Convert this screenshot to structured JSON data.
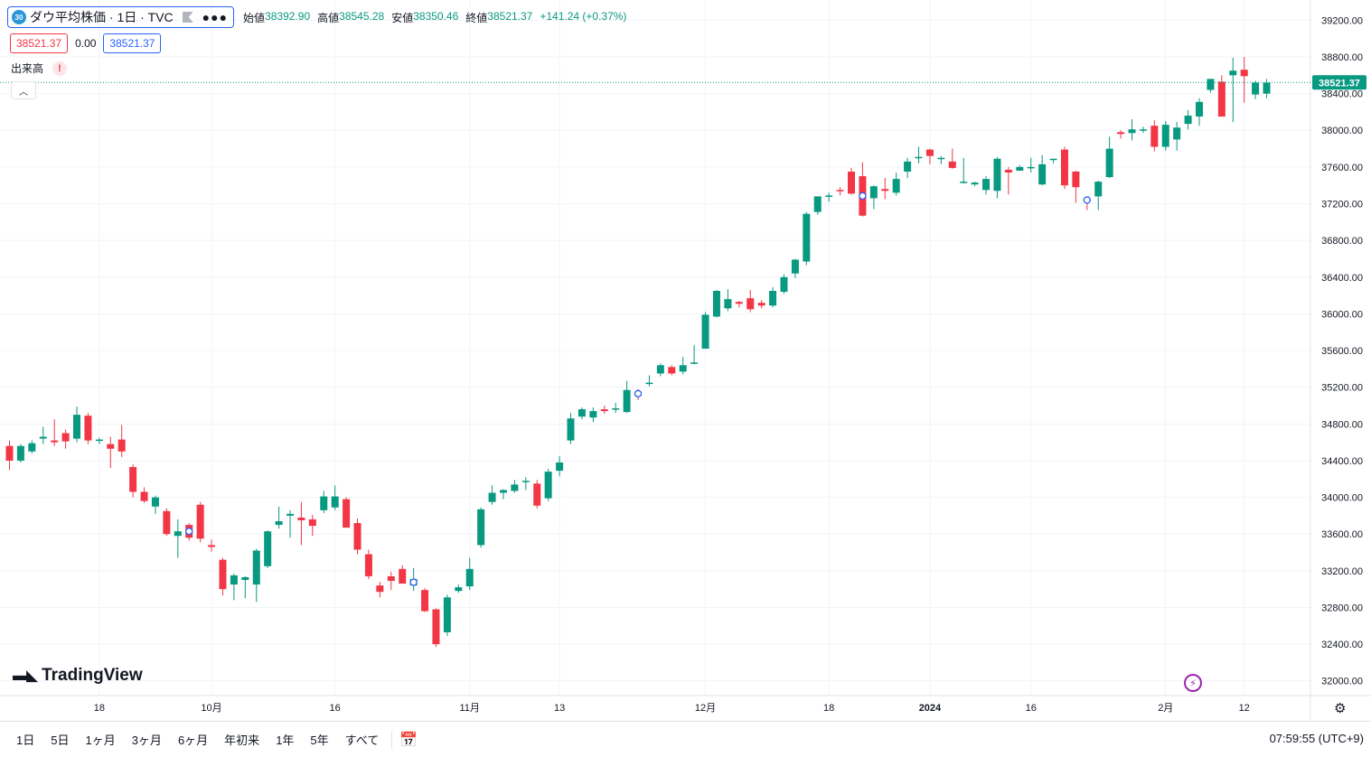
{
  "legend": {
    "badge": "30",
    "title": "ダウ平均株価 · 1日 · TVC",
    "open_label": "始値",
    "open": "38392.90",
    "high_label": "高値",
    "high": "38545.28",
    "low_label": "安値",
    "low": "38350.46",
    "close_label": "終値",
    "close": "38521.37",
    "change": "+141.24 (+0.37%)"
  },
  "quote": {
    "bid": "38521.37",
    "spread": "0.00",
    "ask": "38521.37"
  },
  "volume": {
    "label": "出来高",
    "warning": "!"
  },
  "logo": {
    "text": "TradingView"
  },
  "last_price_label": "38521.37",
  "colors": {
    "up": "#089981",
    "down": "#f23645",
    "accent": "#2962ff"
  },
  "bottom_bar": {
    "ranges": [
      "1日",
      "5日",
      "1ヶ月",
      "3ヶ月",
      "6ヶ月",
      "年初来",
      "1年",
      "5年",
      "すべて"
    ],
    "clock": "07:59:55 (UTC+9)"
  },
  "chart_data": {
    "type": "candlestick",
    "y_ticks": [
      32000,
      32400,
      32800,
      33200,
      33600,
      34000,
      34400,
      34800,
      35200,
      35600,
      36000,
      36400,
      36800,
      37200,
      37600,
      38000,
      38400,
      38800,
      39200
    ],
    "ylim": [
      31840,
      39420
    ],
    "last_price": 38521.37,
    "x_ticks": [
      {
        "label": "18",
        "i": 8
      },
      {
        "label": "10月",
        "i": 18
      },
      {
        "label": "16",
        "i": 29
      },
      {
        "label": "11月",
        "i": 41
      },
      {
        "label": "13",
        "i": 49
      },
      {
        "label": "12月",
        "i": 62
      },
      {
        "label": "18",
        "i": 73
      },
      {
        "label": "2024",
        "i": 82,
        "bold": true
      },
      {
        "label": "16",
        "i": 91
      },
      {
        "label": "2月",
        "i": 103
      },
      {
        "label": "12",
        "i": 110
      }
    ],
    "dividend_markers": [
      16,
      36,
      56,
      76,
      96
    ],
    "candles": [
      [
        34560,
        34620,
        34300,
        34400
      ],
      [
        34400,
        34580,
        34380,
        34560
      ],
      [
        34500,
        34620,
        34480,
        34590
      ],
      [
        34640,
        34770,
        34580,
        34660
      ],
      [
        34620,
        34850,
        34560,
        34600
      ],
      [
        34700,
        34740,
        34530,
        34610
      ],
      [
        34640,
        34990,
        34600,
        34900
      ],
      [
        34890,
        34920,
        34580,
        34620
      ],
      [
        34620,
        34650,
        34580,
        34630
      ],
      [
        34580,
        34660,
        34320,
        34530
      ],
      [
        34630,
        34790,
        34440,
        34500
      ],
      [
        34330,
        34360,
        34000,
        34060
      ],
      [
        34060,
        34110,
        33940,
        33960
      ],
      [
        33900,
        34020,
        33820,
        34000
      ],
      [
        33850,
        33880,
        33580,
        33600
      ],
      [
        33580,
        33760,
        33340,
        33630
      ],
      [
        33700,
        33720,
        33530,
        33560
      ],
      [
        33920,
        33950,
        33510,
        33550
      ],
      [
        33480,
        33540,
        33410,
        33460
      ],
      [
        33320,
        33340,
        32930,
        33000
      ],
      [
        33050,
        33170,
        32880,
        33150
      ],
      [
        33100,
        33140,
        32900,
        33130
      ],
      [
        33050,
        33440,
        32860,
        33420
      ],
      [
        33250,
        33640,
        33230,
        33630
      ],
      [
        33700,
        33900,
        33660,
        33740
      ],
      [
        33800,
        33860,
        33560,
        33820
      ],
      [
        33780,
        33950,
        33480,
        33750
      ],
      [
        33760,
        33810,
        33580,
        33690
      ],
      [
        33860,
        34070,
        33830,
        34010
      ],
      [
        33890,
        34130,
        33860,
        34010
      ],
      [
        33980,
        34000,
        33670,
        33670
      ],
      [
        33720,
        33770,
        33380,
        33430
      ],
      [
        33380,
        33430,
        33110,
        33140
      ],
      [
        33040,
        33080,
        32910,
        32970
      ],
      [
        33140,
        33190,
        32990,
        33090
      ],
      [
        33220,
        33260,
        33070,
        33060
      ],
      [
        33040,
        33230,
        32980,
        33110
      ],
      [
        32990,
        33010,
        32750,
        32760
      ],
      [
        32780,
        32790,
        32370,
        32400
      ],
      [
        32530,
        32940,
        32490,
        32910
      ],
      [
        32980,
        33050,
        32960,
        33020
      ],
      [
        33030,
        33340,
        32990,
        33220
      ],
      [
        33480,
        33890,
        33450,
        33870
      ],
      [
        33950,
        34130,
        33920,
        34050
      ],
      [
        34050,
        34090,
        33980,
        34080
      ],
      [
        34070,
        34190,
        34050,
        34140
      ],
      [
        34170,
        34220,
        34080,
        34180
      ],
      [
        34150,
        34190,
        33880,
        33910
      ],
      [
        33990,
        34310,
        33960,
        34280
      ],
      [
        34290,
        34450,
        34230,
        34380
      ],
      [
        34620,
        34920,
        34580,
        34860
      ],
      [
        34880,
        34980,
        34850,
        34960
      ],
      [
        34870,
        34980,
        34820,
        34940
      ],
      [
        34960,
        35000,
        34910,
        34940
      ],
      [
        34960,
        35030,
        34920,
        34970
      ],
      [
        34930,
        35270,
        34920,
        35170
      ],
      [
        35150,
        35180,
        35060,
        35110
      ],
      [
        35250,
        35330,
        35210,
        35250
      ],
      [
        35350,
        35460,
        35320,
        35440
      ],
      [
        35420,
        35440,
        35330,
        35350
      ],
      [
        35370,
        35530,
        35340,
        35440
      ],
      [
        35470,
        35660,
        35450,
        35470
      ],
      [
        35620,
        36020,
        35620,
        35990
      ],
      [
        35970,
        36260,
        35960,
        36250
      ],
      [
        36060,
        36270,
        36030,
        36160
      ],
      [
        36130,
        36140,
        36070,
        36110
      ],
      [
        36170,
        36260,
        36020,
        36050
      ],
      [
        36120,
        36150,
        36060,
        36090
      ],
      [
        36090,
        36290,
        36070,
        36250
      ],
      [
        36240,
        36430,
        36220,
        36400
      ],
      [
        36440,
        36600,
        36390,
        36590
      ],
      [
        36570,
        37110,
        36530,
        37090
      ],
      [
        37110,
        37280,
        37080,
        37280
      ],
      [
        37290,
        37320,
        37220,
        37290
      ],
      [
        37350,
        37380,
        37290,
        37340
      ],
      [
        37550,
        37590,
        37300,
        37310
      ],
      [
        37500,
        37650,
        37060,
        37070
      ],
      [
        37260,
        37400,
        37140,
        37390
      ],
      [
        37360,
        37480,
        37250,
        37340
      ],
      [
        37320,
        37540,
        37290,
        37470
      ],
      [
        37550,
        37700,
        37480,
        37660
      ],
      [
        37700,
        37820,
        37640,
        37710
      ],
      [
        37790,
        37800,
        37630,
        37720
      ],
      [
        37700,
        37720,
        37630,
        37700
      ],
      [
        37660,
        37800,
        37580,
        37590
      ],
      [
        37440,
        37700,
        37420,
        37440
      ],
      [
        37410,
        37440,
        37390,
        37430
      ],
      [
        37350,
        37500,
        37300,
        37470
      ],
      [
        37340,
        37710,
        37260,
        37690
      ],
      [
        37570,
        37600,
        37300,
        37540
      ],
      [
        37560,
        37620,
        37560,
        37600
      ],
      [
        37600,
        37700,
        37540,
        37600
      ],
      [
        37410,
        37730,
        37400,
        37630
      ],
      [
        37680,
        37690,
        37640,
        37690
      ],
      [
        37790,
        37820,
        37360,
        37400
      ],
      [
        37550,
        37560,
        37210,
        37380
      ],
      [
        37250,
        37260,
        37130,
        37230
      ],
      [
        37280,
        37450,
        37130,
        37440
      ],
      [
        37490,
        37930,
        37480,
        37800
      ],
      [
        37980,
        38000,
        37910,
        37960
      ],
      [
        37970,
        38120,
        37890,
        38010
      ],
      [
        38010,
        38040,
        37970,
        38010
      ],
      [
        38050,
        38110,
        37770,
        37820
      ],
      [
        37820,
        38100,
        37780,
        38060
      ],
      [
        37900,
        38090,
        37780,
        38030
      ],
      [
        38070,
        38220,
        38010,
        38160
      ],
      [
        38150,
        38350,
        38050,
        38310
      ],
      [
        38440,
        38560,
        38410,
        38560
      ],
      [
        38530,
        38600,
        38200,
        38150
      ],
      [
        38600,
        38790,
        38090,
        38650
      ],
      [
        38660,
        38800,
        38300,
        38590
      ],
      [
        38390,
        38540,
        38340,
        38520
      ],
      [
        38400,
        38560,
        38350,
        38520
      ]
    ]
  }
}
